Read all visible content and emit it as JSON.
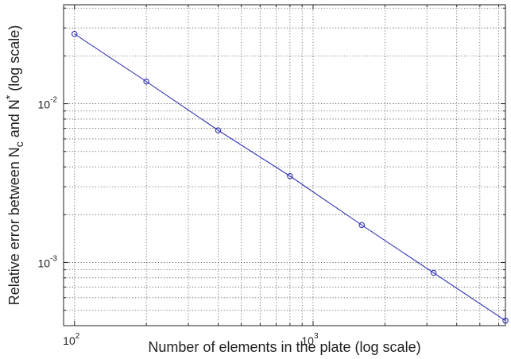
{
  "chart_data": {
    "type": "line",
    "xscale": "log",
    "yscale": "log",
    "xlim": [
      90,
      6400
    ],
    "ylim": [
      0.0004,
      0.042
    ],
    "grid": true,
    "grid_style": "dotted",
    "line_color": "#1f1fb0",
    "marker": "circle",
    "xlabel": "Number of elements in the plate (log scale)",
    "ylabel_parts": {
      "prefix": "Relative error between N",
      "sub": "c",
      "middle": " and N",
      "sup": "*",
      "suffix": " (log scale)"
    },
    "x_ticks": [
      {
        "value": 100,
        "base": "10",
        "exp": "2"
      },
      {
        "value": 1000,
        "base": "10",
        "exp": "3"
      }
    ],
    "y_ticks": [
      {
        "value": 0.01,
        "base": "10",
        "exp": "-2"
      },
      {
        "value": 0.001,
        "base": "10",
        "exp": "-3"
      }
    ],
    "series": [
      {
        "x": [
          100,
          200,
          400,
          800,
          1600,
          3200,
          6400
        ],
        "y": [
          0.0275,
          0.0138,
          0.0068,
          0.0035,
          0.00172,
          0.00086,
          0.00043
        ]
      }
    ]
  }
}
